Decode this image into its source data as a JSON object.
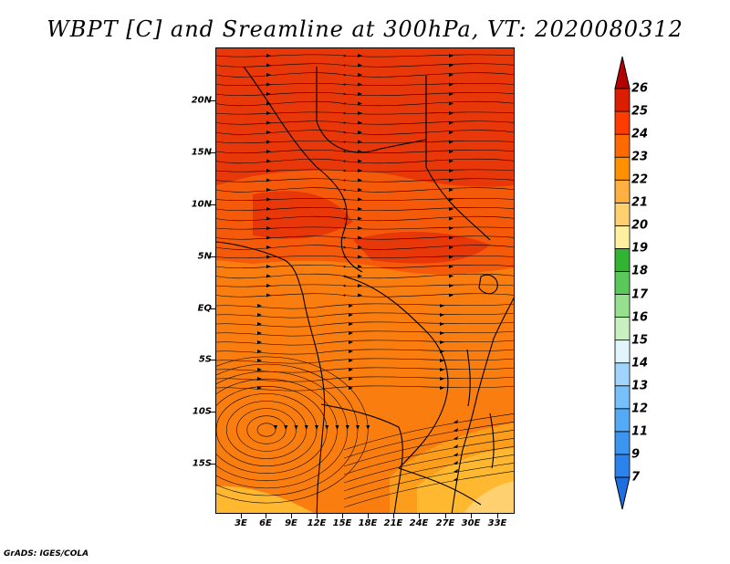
{
  "title": "WBPT [C] and Sreamline at 300hPa, VT: 2020080312",
  "credit": "GrADS: IGES/COLA",
  "map": {
    "lat_labels": [
      "20N",
      "15N",
      "10N",
      "5N",
      "EQ",
      "5S",
      "10S",
      "15S"
    ],
    "lon_labels": [
      "3E",
      "6E",
      "9E",
      "12E",
      "15E",
      "18E",
      "21E",
      "24E",
      "27E",
      "30E",
      "33E"
    ]
  },
  "colorbar": {
    "labels": [
      "7",
      "9",
      "11",
      "12",
      "13",
      "14",
      "15",
      "16",
      "17",
      "18",
      "19",
      "20",
      "21",
      "22",
      "23",
      "24",
      "25",
      "26"
    ],
    "colors": [
      "#1e6ee0",
      "#2b82ea",
      "#3c96f0",
      "#55aaf5",
      "#78c0fa",
      "#a0d4fc",
      "#e0f5fc",
      "#c8f0c0",
      "#96e090",
      "#5ac85a",
      "#32b432",
      "#fff0a0",
      "#ffd070",
      "#ffb040",
      "#ff9000",
      "#ff6a00",
      "#ff3c00",
      "#dc1e00",
      "#b40000"
    ]
  },
  "fill_colors": {
    "deep_red": "#e8380a",
    "orange_red": "#f45a0a",
    "orange": "#fa7d10",
    "light_orange": "#fd9d1c",
    "yellow_orange": "#ffb830",
    "pale_yellow": "#ffd070"
  }
}
